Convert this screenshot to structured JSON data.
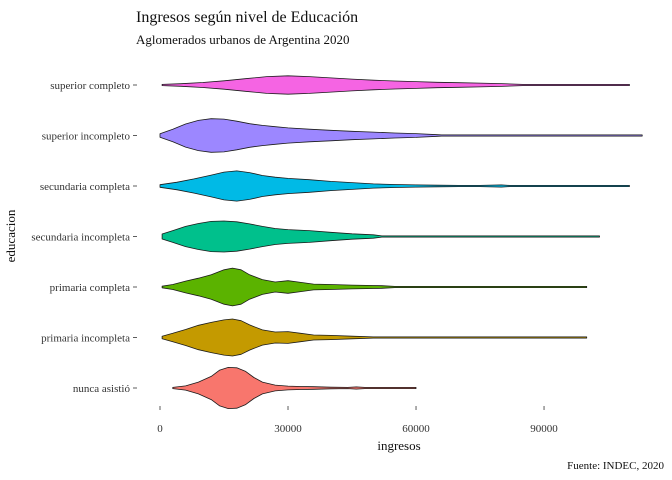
{
  "chart_data": {
    "type": "violin",
    "title": "Ingresos según nivel de Educación",
    "subtitle": "Aglomerados urbanos de Argentina 2020",
    "xlabel": "ingresos",
    "ylabel": "educacion",
    "caption": "Fuente: INDEC, 2020",
    "xlim": [
      0,
      112000
    ],
    "xticks": [
      0,
      30000,
      60000,
      90000
    ],
    "xtick_labels": [
      "0",
      "30000",
      "60000",
      "90000"
    ],
    "grid": false,
    "legend": "none",
    "series": [
      {
        "category": "superior completo",
        "color": "#f564e3",
        "min": 500,
        "max": 110000,
        "density": [
          [
            500,
            0.02
          ],
          [
            5000,
            0.06
          ],
          [
            10000,
            0.12
          ],
          [
            15000,
            0.2
          ],
          [
            20000,
            0.3
          ],
          [
            25000,
            0.4
          ],
          [
            30000,
            0.44
          ],
          [
            35000,
            0.4
          ],
          [
            40000,
            0.34
          ],
          [
            45000,
            0.28
          ],
          [
            50000,
            0.23
          ],
          [
            55000,
            0.19
          ],
          [
            60000,
            0.16
          ],
          [
            65000,
            0.13
          ],
          [
            70000,
            0.11
          ],
          [
            75000,
            0.09
          ],
          [
            80000,
            0.065
          ],
          [
            85000,
            0.03
          ],
          [
            90000,
            0.018
          ],
          [
            95000,
            0.014
          ],
          [
            100000,
            0.012
          ],
          [
            110000,
            0.01
          ]
        ]
      },
      {
        "category": "superior incompleto",
        "color": "#9c87ff",
        "min": 0,
        "max": 113000,
        "density": [
          [
            0,
            0.08
          ],
          [
            3000,
            0.3
          ],
          [
            6000,
            0.55
          ],
          [
            9000,
            0.72
          ],
          [
            12000,
            0.8
          ],
          [
            15000,
            0.78
          ],
          [
            18000,
            0.68
          ],
          [
            21000,
            0.56
          ],
          [
            24000,
            0.48
          ],
          [
            27000,
            0.42
          ],
          [
            30000,
            0.36
          ],
          [
            35000,
            0.3
          ],
          [
            40000,
            0.25
          ],
          [
            45000,
            0.2
          ],
          [
            50000,
            0.16
          ],
          [
            55000,
            0.12
          ],
          [
            60000,
            0.09
          ],
          [
            65000,
            0.04
          ],
          [
            66000,
            0.015
          ],
          [
            80000,
            0.01
          ],
          [
            113000,
            0.008
          ]
        ]
      },
      {
        "category": "secundaria completa",
        "color": "#00bae6",
        "min": 0,
        "max": 110000,
        "density": [
          [
            0,
            0.06
          ],
          [
            4000,
            0.18
          ],
          [
            8000,
            0.34
          ],
          [
            12000,
            0.52
          ],
          [
            15000,
            0.66
          ],
          [
            18000,
            0.72
          ],
          [
            21000,
            0.64
          ],
          [
            24000,
            0.5
          ],
          [
            27000,
            0.42
          ],
          [
            30000,
            0.36
          ],
          [
            35000,
            0.3
          ],
          [
            40000,
            0.22
          ],
          [
            45000,
            0.16
          ],
          [
            50000,
            0.1
          ],
          [
            55000,
            0.07
          ],
          [
            60000,
            0.05
          ],
          [
            65000,
            0.04
          ],
          [
            70000,
            0.03
          ],
          [
            75000,
            0.02
          ],
          [
            80000,
            0.05
          ],
          [
            82000,
            0.01
          ],
          [
            110000,
            0.01
          ]
        ]
      },
      {
        "category": "secundaria incompleta",
        "color": "#00c08c",
        "min": 500,
        "max": 103000,
        "density": [
          [
            500,
            0.12
          ],
          [
            3000,
            0.28
          ],
          [
            6000,
            0.48
          ],
          [
            9000,
            0.62
          ],
          [
            12000,
            0.72
          ],
          [
            15000,
            0.74
          ],
          [
            18000,
            0.7
          ],
          [
            21000,
            0.6
          ],
          [
            24000,
            0.48
          ],
          [
            27000,
            0.38
          ],
          [
            30000,
            0.33
          ],
          [
            35000,
            0.28
          ],
          [
            40000,
            0.2
          ],
          [
            45000,
            0.13
          ],
          [
            50000,
            0.08
          ],
          [
            52000,
            0.03
          ],
          [
            60000,
            0.03
          ],
          [
            70000,
            0.02
          ],
          [
            80000,
            0.02
          ],
          [
            100000,
            0.02
          ],
          [
            103000,
            0.01
          ]
        ]
      },
      {
        "category": "primaria completa",
        "color": "#5bb300",
        "min": 500,
        "max": 100000,
        "density": [
          [
            500,
            0.04
          ],
          [
            3000,
            0.12
          ],
          [
            6000,
            0.28
          ],
          [
            9000,
            0.42
          ],
          [
            12000,
            0.58
          ],
          [
            15000,
            0.82
          ],
          [
            17000,
            0.9
          ],
          [
            19000,
            0.82
          ],
          [
            21000,
            0.58
          ],
          [
            24000,
            0.35
          ],
          [
            27000,
            0.24
          ],
          [
            30000,
            0.3
          ],
          [
            33000,
            0.22
          ],
          [
            36000,
            0.14
          ],
          [
            40000,
            0.12
          ],
          [
            45000,
            0.09
          ],
          [
            50000,
            0.07
          ],
          [
            52000,
            0.06
          ],
          [
            55000,
            0.02
          ],
          [
            62000,
            0.03
          ],
          [
            65000,
            0.01
          ],
          [
            100000,
            0.01
          ]
        ]
      },
      {
        "category": "primaria incompleta",
        "color": "#c49a00",
        "min": 500,
        "max": 100000,
        "density": [
          [
            500,
            0.06
          ],
          [
            3000,
            0.2
          ],
          [
            6000,
            0.38
          ],
          [
            9000,
            0.58
          ],
          [
            12000,
            0.72
          ],
          [
            15000,
            0.84
          ],
          [
            17000,
            0.88
          ],
          [
            19000,
            0.8
          ],
          [
            21000,
            0.6
          ],
          [
            24000,
            0.36
          ],
          [
            27000,
            0.26
          ],
          [
            30000,
            0.28
          ],
          [
            33000,
            0.2
          ],
          [
            36000,
            0.12
          ],
          [
            40000,
            0.1
          ],
          [
            45000,
            0.06
          ],
          [
            50000,
            0.02
          ],
          [
            60000,
            0.01
          ],
          [
            100000,
            0.01
          ]
        ]
      },
      {
        "category": "nunca asistió",
        "color": "#f8766d",
        "min": 3000,
        "max": 60000,
        "density": [
          [
            3000,
            0.03
          ],
          [
            6000,
            0.1
          ],
          [
            9000,
            0.28
          ],
          [
            12000,
            0.55
          ],
          [
            14000,
            0.85
          ],
          [
            16000,
            0.98
          ],
          [
            18000,
            0.96
          ],
          [
            20000,
            0.8
          ],
          [
            22000,
            0.5
          ],
          [
            24000,
            0.28
          ],
          [
            27000,
            0.14
          ],
          [
            30000,
            0.09
          ],
          [
            33000,
            0.07
          ],
          [
            36000,
            0.06
          ],
          [
            40000,
            0.04
          ],
          [
            44000,
            0.03
          ],
          [
            46000,
            0.05
          ],
          [
            48000,
            0.03
          ],
          [
            52000,
            0.02
          ],
          [
            56000,
            0.02
          ],
          [
            60000,
            0.01
          ]
        ]
      }
    ]
  }
}
